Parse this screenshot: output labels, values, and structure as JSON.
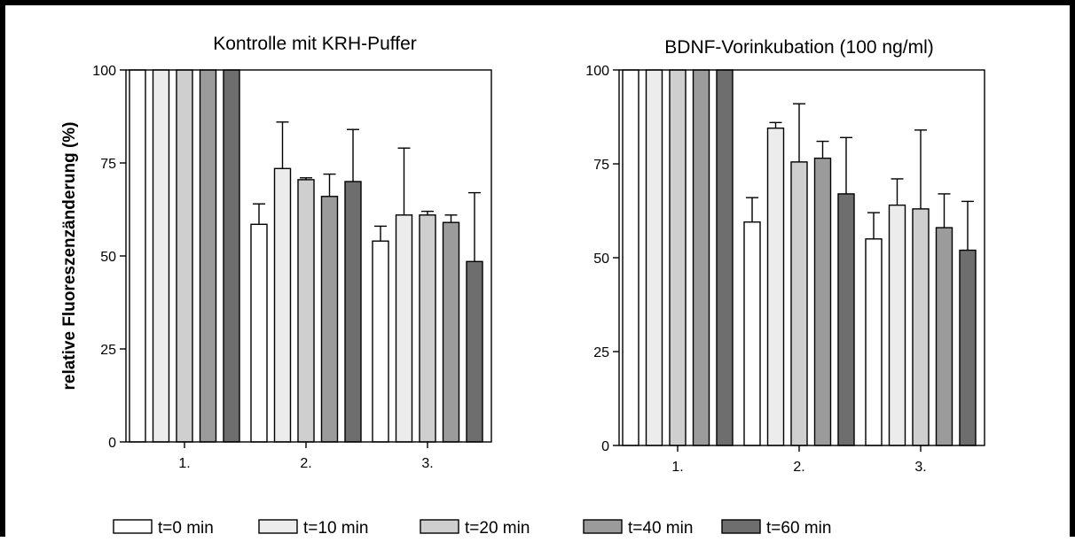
{
  "chart_data": [
    {
      "type": "bar",
      "title": "Kontrolle mit KRH-Puffer",
      "ylabel": "relative Fluoreszenzänderung (%)",
      "xlabel": "",
      "ylim": [
        0,
        100
      ],
      "yticks": [
        "0",
        "25",
        "50",
        "75",
        "100"
      ],
      "categories": [
        "1.",
        "2.",
        "3."
      ],
      "series": [
        {
          "name": "t=0 min",
          "values": [
            100,
            58.5,
            54
          ],
          "errors": [
            0,
            5.5,
            4
          ]
        },
        {
          "name": "t=10 min",
          "values": [
            100,
            73.5,
            61
          ],
          "errors": [
            0,
            12.5,
            18
          ]
        },
        {
          "name": "t=20 min",
          "values": [
            100,
            70.5,
            61
          ],
          "errors": [
            0,
            0.5,
            1
          ]
        },
        {
          "name": "t=40 min",
          "values": [
            100,
            66,
            59
          ],
          "errors": [
            0,
            6,
            2
          ]
        },
        {
          "name": "t=60 min",
          "values": [
            100,
            70,
            48.5
          ],
          "errors": [
            0,
            14,
            18.5
          ]
        }
      ]
    },
    {
      "type": "bar",
      "title": "BDNF-Vorinkubation (100 ng/ml)",
      "ylabel": "",
      "xlabel": "",
      "ylim": [
        0,
        100
      ],
      "yticks": [
        "0",
        "25",
        "50",
        "75",
        "100"
      ],
      "categories": [
        "1.",
        "2.",
        "3."
      ],
      "series": [
        {
          "name": "t=0 min",
          "values": [
            100,
            59.5,
            55
          ],
          "errors": [
            0,
            6.5,
            7
          ]
        },
        {
          "name": "t=10 min",
          "values": [
            100,
            84.5,
            64
          ],
          "errors": [
            0,
            1.5,
            7
          ]
        },
        {
          "name": "t=20 min",
          "values": [
            100,
            75.5,
            63
          ],
          "errors": [
            0,
            15.5,
            21
          ]
        },
        {
          "name": "t=40 min",
          "values": [
            100,
            76.5,
            58
          ],
          "errors": [
            0,
            4.5,
            9
          ]
        },
        {
          "name": "t=60 min",
          "values": [
            100,
            67,
            52
          ],
          "errors": [
            0,
            15,
            13
          ]
        }
      ]
    }
  ],
  "legend": {
    "placement": "bottom",
    "items": [
      "t=0 min",
      "t=10 min",
      "t=20 min",
      "t=40 min",
      "t=60 min"
    ]
  },
  "colors": {
    "t=0 min": "#ffffff",
    "t=10 min": "#ececec",
    "t=20 min": "#cfcfcf",
    "t=40 min": "#9b9b9b",
    "t=60 min": "#6e6e6e",
    "outline": "#000000",
    "frame": "#000000"
  }
}
